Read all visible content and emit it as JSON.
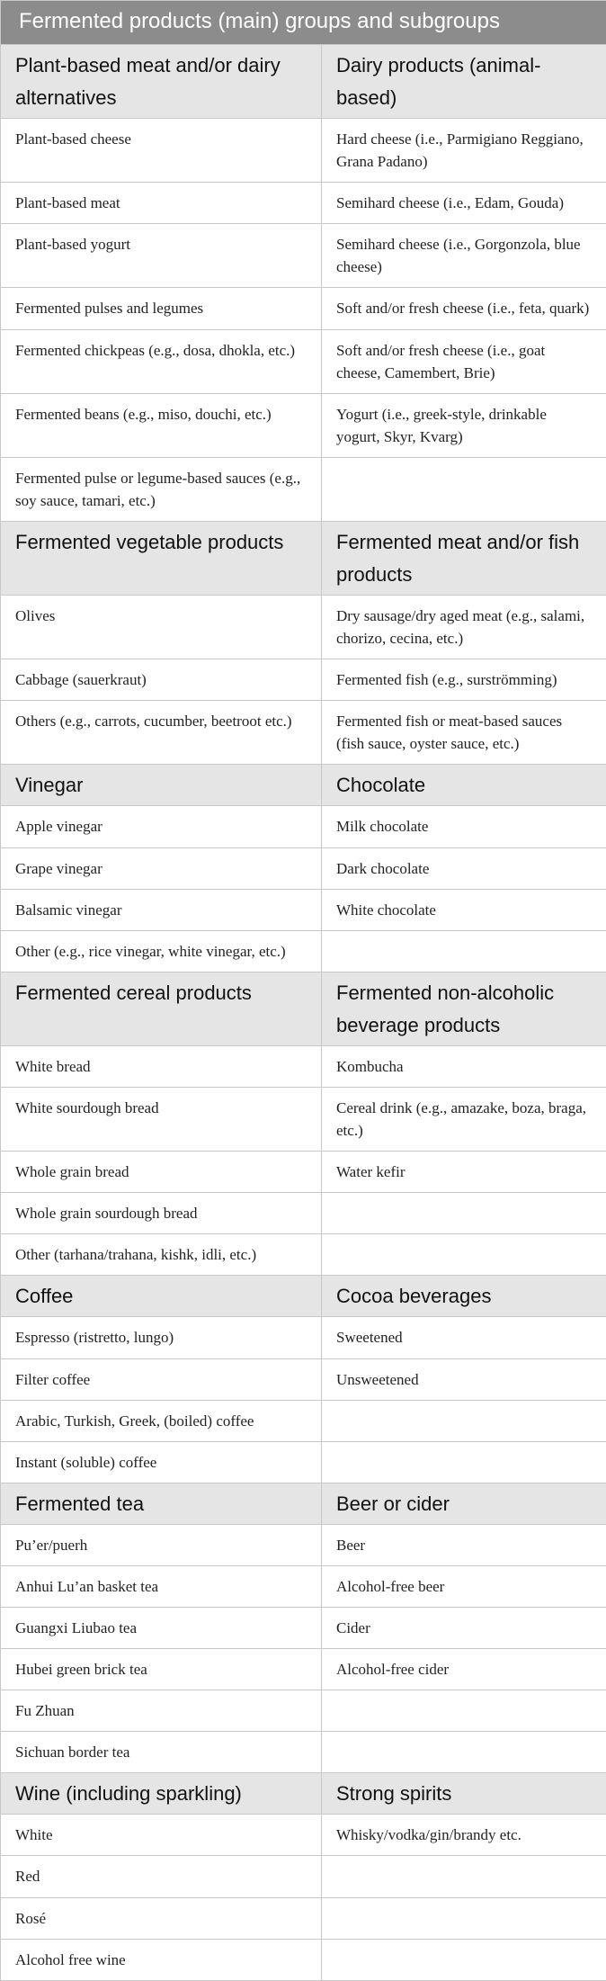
{
  "title": "Fermented products (main) groups and subgroups",
  "sections": [
    {
      "left": {
        "heading": "Plant-based meat and/or dairy alternatives",
        "items": [
          "Plant-based cheese",
          "Plant-based meat",
          "Plant-based yogurt",
          "Fermented pulses and legumes",
          "Fermented chickpeas (e.g., dosa, dhokla, etc.)",
          "Fermented beans (e.g., miso, douchi, etc.)",
          "Fermented pulse or legume-based sauces (e.g., soy sauce, tamari, etc.)"
        ]
      },
      "right": {
        "heading": "Dairy products (animal-based)",
        "items": [
          "Hard cheese (i.e., Parmigiano Reggiano, Grana Padano)",
          "Semihard cheese (i.e., Edam, Gouda)",
          "Semihard cheese (i.e., Gorgonzola, blue cheese)",
          "Soft and/or fresh cheese (i.e., feta, quark)",
          "Soft and/or fresh cheese (i.e., goat cheese, Camembert, Brie)",
          "Yogurt (i.e., greek-style, drinkable yogurt, Skyr, Kvarg)",
          ""
        ]
      }
    },
    {
      "left": {
        "heading": "Fermented vegetable products",
        "items": [
          "Olives",
          "Cabbage (sauerkraut)",
          "Others (e.g., carrots, cucumber, beetroot etc.)"
        ]
      },
      "right": {
        "heading": "Fermented meat and/or fish products",
        "items": [
          "Dry sausage/dry aged meat (e.g., salami, chorizo, cecina, etc.)",
          "Fermented fish (e.g., surströmming)",
          "Fermented fish or meat-based sauces (fish sauce, oyster sauce, etc.)"
        ]
      }
    },
    {
      "left": {
        "heading": "Vinegar",
        "items": [
          "Apple vinegar",
          "Grape vinegar",
          "Balsamic vinegar",
          "Other (e.g., rice vinegar, white vinegar, etc.)"
        ]
      },
      "right": {
        "heading": "Chocolate",
        "items": [
          "Milk chocolate",
          "Dark chocolate",
          "White chocolate",
          ""
        ]
      }
    },
    {
      "left": {
        "heading": "Fermented cereal products",
        "items": [
          "White bread",
          "White sourdough bread",
          "Whole grain bread",
          "Whole grain sourdough bread",
          "Other (tarhana/trahana, kishk, idli, etc.)"
        ]
      },
      "right": {
        "heading": "Fermented non-alcoholic beverage products",
        "items": [
          "Kombucha",
          "Cereal drink (e.g., amazake, boza, braga, etc.)",
          "Water kefir",
          "",
          ""
        ]
      }
    },
    {
      "left": {
        "heading": "Coffee",
        "items": [
          "Espresso (ristretto, lungo)",
          "Filter coffee",
          "Arabic, Turkish, Greek, (boiled) coffee",
          "Instant (soluble) coffee"
        ]
      },
      "right": {
        "heading": "Cocoa beverages",
        "items": [
          "Sweetened",
          "Unsweetened",
          "",
          ""
        ]
      }
    },
    {
      "left": {
        "heading": "Fermented tea",
        "items": [
          "Pu’er/puerh",
          "Anhui Lu’an basket tea",
          "Guangxi Liubao tea",
          "Hubei green brick tea",
          "Fu Zhuan",
          "Sichuan border tea"
        ]
      },
      "right": {
        "heading": "Beer or cider",
        "items": [
          "Beer",
          "Alcohol-free beer",
          "Cider",
          "Alcohol-free cider",
          "",
          ""
        ]
      }
    },
    {
      "left": {
        "heading": "Wine (including sparkling)",
        "items": [
          "White",
          "Red",
          "Rosé",
          "Alcohol free wine"
        ]
      },
      "right": {
        "heading": "Strong spirits",
        "items": [
          "Whisky/vodka/gin/brandy etc.",
          "",
          "",
          ""
        ]
      }
    }
  ]
}
